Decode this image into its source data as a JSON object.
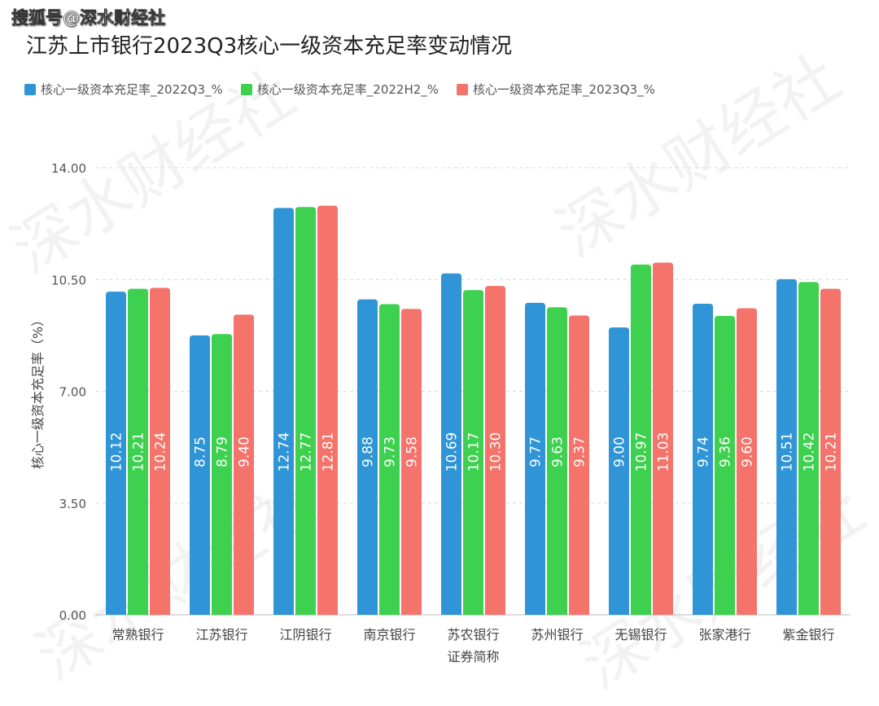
{
  "header": {
    "watermark": "搜狐号@深水财经社",
    "title": "江苏上市银行2023Q3核心一级资本充足率变动情况"
  },
  "background_watermark": "深水财经社",
  "chart_data": {
    "type": "bar",
    "title": "江苏上市银行2023Q3核心一级资本充足率变动情况",
    "xlabel": "证券简称",
    "ylabel": "核心一级资本充足率（%）",
    "ylim": [
      0,
      14
    ],
    "yticks": [
      "0.00",
      "3.50",
      "7.00",
      "10.50",
      "14.00"
    ],
    "grid": true,
    "legend_position": "top-left",
    "categories": [
      "常熟银行",
      "江苏银行",
      "江阴银行",
      "南京银行",
      "苏农银行",
      "苏州银行",
      "无锡银行",
      "张家港行",
      "紫金银行"
    ],
    "series": [
      {
        "name": "核心一级资本充足率_2022Q3_%",
        "color": "#2f95d6",
        "values": [
          10.12,
          8.75,
          12.74,
          9.88,
          10.69,
          9.77,
          9.0,
          9.74,
          10.51
        ]
      },
      {
        "name": "核心一级资本充足率_2022H2_%",
        "color": "#3ed04f",
        "values": [
          10.21,
          8.79,
          12.77,
          9.73,
          10.17,
          9.63,
          10.97,
          9.36,
          10.42
        ]
      },
      {
        "name": "核心一级资本充足率_2023Q3_%",
        "color": "#f4736a",
        "values": [
          10.24,
          9.4,
          12.81,
          9.58,
          10.3,
          9.37,
          11.03,
          9.6,
          10.21
        ]
      }
    ],
    "data_labels": [
      [
        "10.12",
        "8.75",
        "12.74",
        "9.88",
        "10.69",
        "9.77",
        "9.00",
        "9.74",
        "10.51"
      ],
      [
        "10.21",
        "8.79",
        "12.77",
        "9.73",
        "10.17",
        "9.63",
        "10.97",
        "9.36",
        "10.42"
      ],
      [
        "10.24",
        "9.40",
        "12.81",
        "9.58",
        "10.30",
        "9.37",
        "11.03",
        "9.60",
        "10.21"
      ]
    ]
  }
}
